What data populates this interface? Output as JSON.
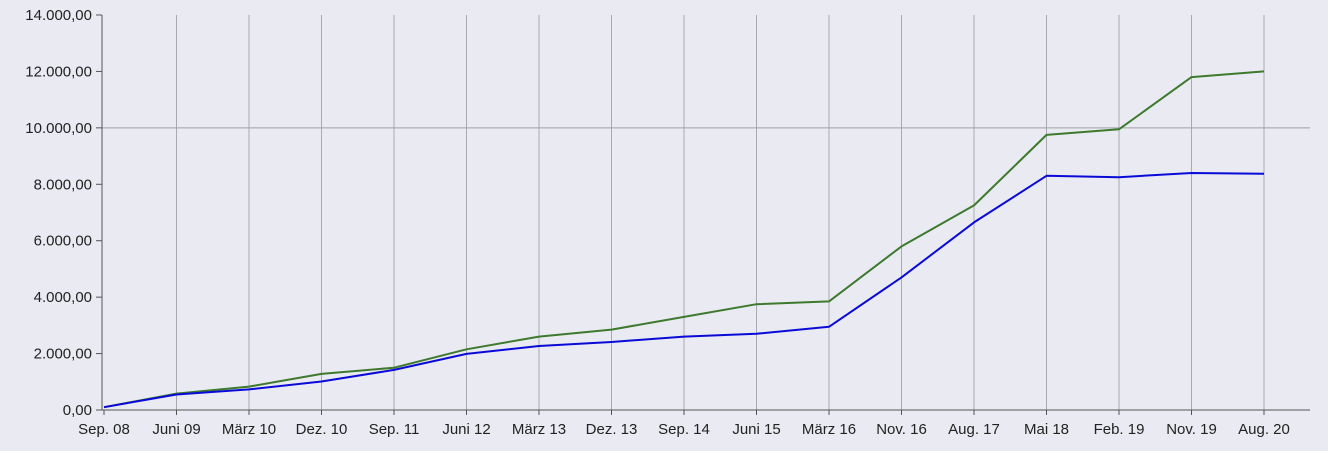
{
  "chart_data": {
    "type": "line",
    "title": "",
    "xlabel": "",
    "ylabel": "",
    "ylim": [
      0,
      14000
    ],
    "grid": true,
    "legend": "none",
    "x_tick_labels": [
      "Sep. 08",
      "Juni 09",
      "März 10",
      "Dez. 10",
      "Sep. 11",
      "Juni 12",
      "März 13",
      "Dez. 13",
      "Sep. 14",
      "Juni 15",
      "März 16",
      "Nov. 16",
      "Aug. 17",
      "Mai 18",
      "Feb. 19",
      "Nov. 19",
      "Aug. 20"
    ],
    "y_tick_labels": [
      "0,00",
      "2.000,00",
      "4.000,00",
      "6.000,00",
      "8.000,00",
      "10.000,00",
      "12.000,00",
      "14.000,00"
    ],
    "y_ticks": [
      0,
      2000,
      4000,
      6000,
      8000,
      10000,
      12000,
      14000
    ],
    "highlight_gridline_y": 10000,
    "x": [
      "Sep. 08",
      "Juni 09",
      "März 10",
      "Dez. 10",
      "Sep. 11",
      "Juni 12",
      "März 13",
      "Dez. 13",
      "Sep. 14",
      "Juni 15",
      "März 16",
      "Nov. 16",
      "Aug. 17",
      "Mai 18",
      "Feb. 19",
      "Nov. 19",
      "Aug. 20"
    ],
    "series": [
      {
        "color": "#3d7a2e",
        "values": [
          100,
          580,
          830,
          1280,
          1500,
          2150,
          2600,
          2850,
          3300,
          3750,
          3850,
          5800,
          7250,
          9750,
          9950,
          11800,
          12000
        ]
      },
      {
        "color": "#0a0ad8",
        "values": [
          100,
          550,
          730,
          1010,
          1420,
          1990,
          2270,
          2410,
          2600,
          2700,
          2950,
          4700,
          6650,
          8300,
          8250,
          8400,
          8370
        ]
      }
    ]
  }
}
